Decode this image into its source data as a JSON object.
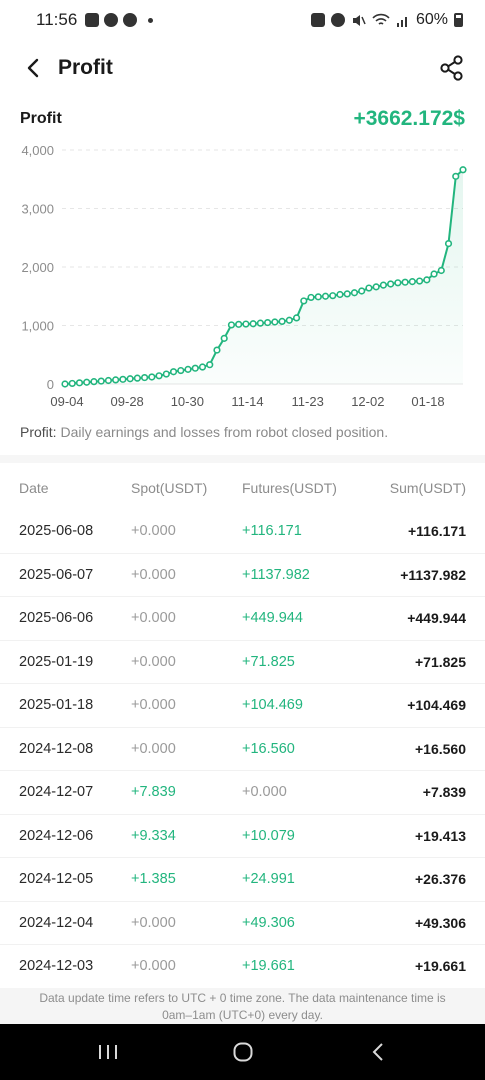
{
  "status": {
    "time": "11:56",
    "battery": "60%",
    "left_icons": [
      "gallery-icon",
      "facebook-icon",
      "facebook-icon",
      "dot-icon"
    ],
    "right_icons": [
      "lock-icon",
      "alarm-icon",
      "mute-icon",
      "wifi-icon",
      "signal-icon",
      "battery-icon"
    ]
  },
  "header": {
    "title": "Profit",
    "back_icon": "chevron-left-icon",
    "share_icon": "share-icon"
  },
  "summary": {
    "label": "Profit",
    "total": "+3662.172$"
  },
  "chart_data": {
    "type": "line",
    "title": "",
    "xlabel": "",
    "ylabel": "",
    "ylim": [
      0,
      4000
    ],
    "yticks": [
      "4,000",
      "3,000",
      "2,000",
      "1,000",
      "0"
    ],
    "xticks": [
      "09-04",
      "09-28",
      "10-30",
      "11-14",
      "11-23",
      "12-02",
      "01-18"
    ],
    "grid": "horizontal-dashed",
    "color": "#22b57e",
    "values": [
      0,
      10,
      20,
      30,
      40,
      50,
      60,
      70,
      80,
      90,
      100,
      110,
      120,
      140,
      170,
      210,
      230,
      250,
      270,
      290,
      330,
      580,
      780,
      1010,
      1020,
      1025,
      1030,
      1040,
      1050,
      1060,
      1070,
      1090,
      1130,
      1420,
      1480,
      1490,
      1500,
      1510,
      1530,
      1540,
      1560,
      1590,
      1640,
      1660,
      1690,
      1710,
      1730,
      1740,
      1750,
      1760,
      1780,
      1880,
      1940,
      2400,
      3550,
      3662
    ]
  },
  "chart_note": {
    "label": "Profit:",
    "text": " Daily earnings and losses from robot closed position."
  },
  "table": {
    "headers": {
      "date": "Date",
      "spot": "Spot(USDT)",
      "futures": "Futures(USDT)",
      "sum": "Sum(USDT)"
    },
    "rows": [
      {
        "date": "2025-06-08",
        "spot": "+0.000",
        "futures": "+116.171",
        "sum": "+116.171"
      },
      {
        "date": "2025-06-07",
        "spot": "+0.000",
        "futures": "+1137.982",
        "sum": "+1137.982"
      },
      {
        "date": "2025-06-06",
        "spot": "+0.000",
        "futures": "+449.944",
        "sum": "+449.944"
      },
      {
        "date": "2025-01-19",
        "spot": "+0.000",
        "futures": "+71.825",
        "sum": "+71.825"
      },
      {
        "date": "2025-01-18",
        "spot": "+0.000",
        "futures": "+104.469",
        "sum": "+104.469"
      },
      {
        "date": "2024-12-08",
        "spot": "+0.000",
        "futures": "+16.560",
        "sum": "+16.560"
      },
      {
        "date": "2024-12-07",
        "spot": "+7.839",
        "futures": "+0.000",
        "sum": "+7.839"
      },
      {
        "date": "2024-12-06",
        "spot": "+9.334",
        "futures": "+10.079",
        "sum": "+19.413"
      },
      {
        "date": "2024-12-05",
        "spot": "+1.385",
        "futures": "+24.991",
        "sum": "+26.376"
      },
      {
        "date": "2024-12-04",
        "spot": "+0.000",
        "futures": "+49.306",
        "sum": "+49.306"
      },
      {
        "date": "2024-12-03",
        "spot": "+0.000",
        "futures": "+19.661",
        "sum": "+19.661"
      }
    ]
  },
  "footer": {
    "note_line1": "Data update time refers to UTC + 0 time zone. The data maintenance time is",
    "note_line2": "0am–1am (UTC+0) every day."
  },
  "navbar": {
    "recents_icon": "recents-icon",
    "home_icon": "home-icon",
    "back_icon": "back-icon"
  }
}
